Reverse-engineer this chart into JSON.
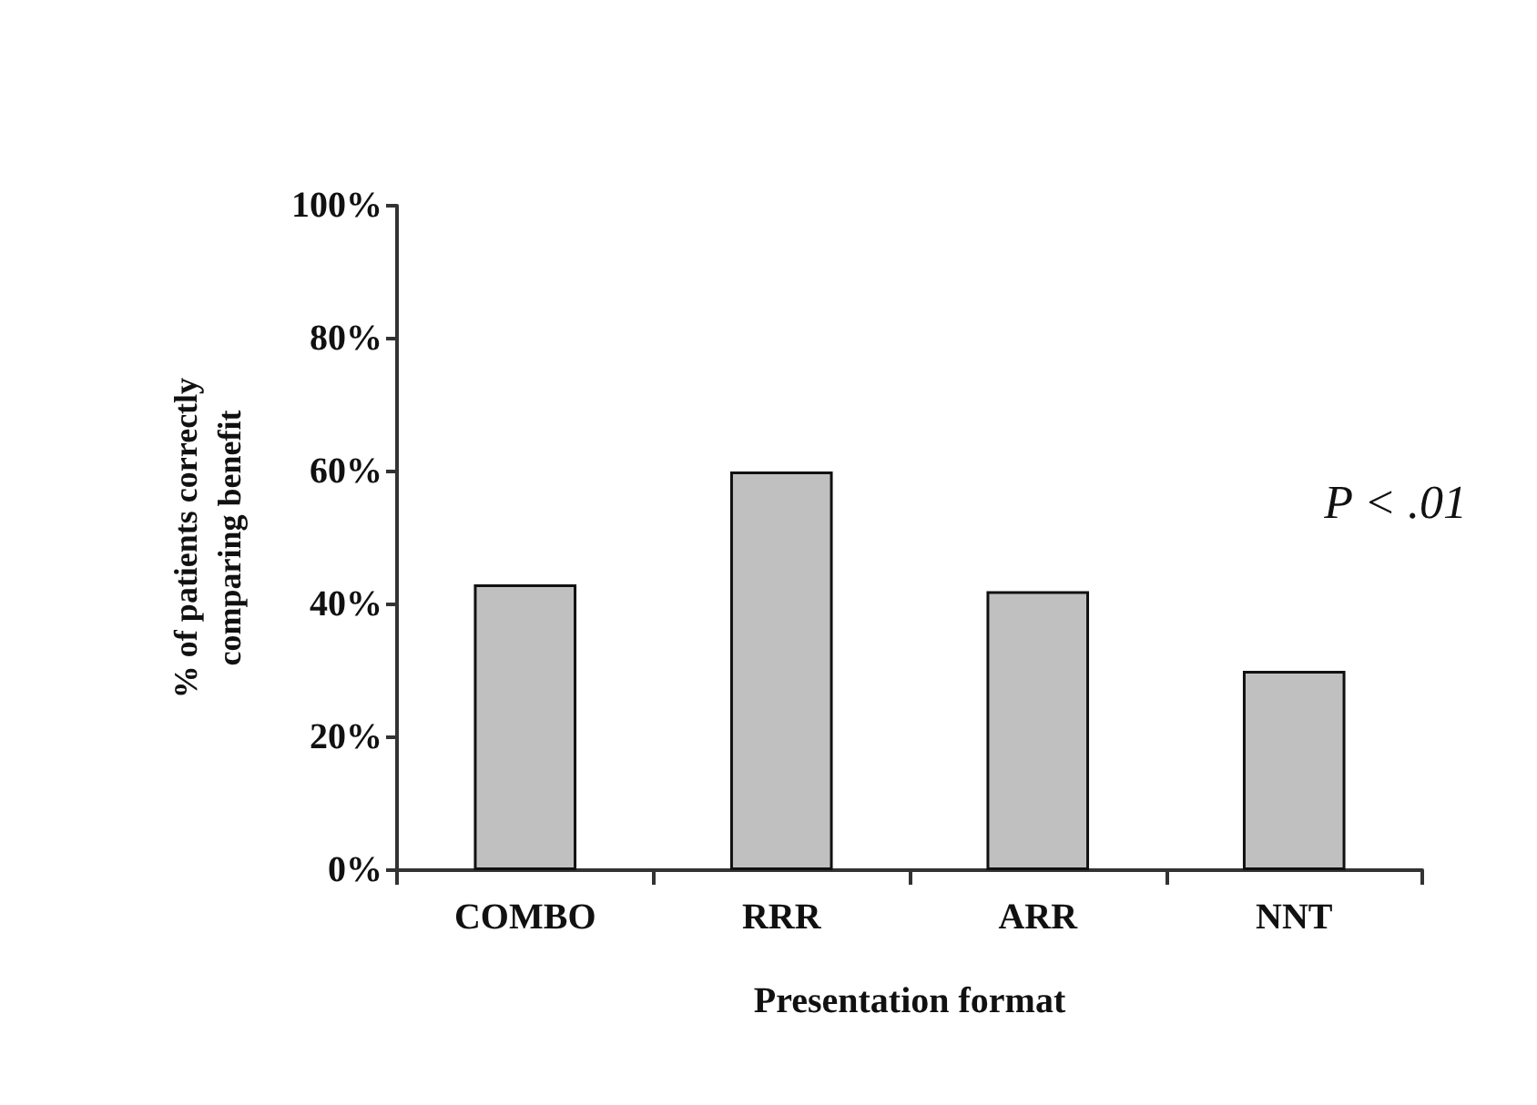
{
  "chart_data": {
    "type": "bar",
    "xlabel": "Presentation format",
    "ylabel": "% of patients correctly\ncomparing benefit",
    "categories": [
      "COMBO",
      "RRR",
      "ARR",
      "NNT"
    ],
    "values": [
      43,
      60,
      42,
      30
    ],
    "color": "#c0c0c0",
    "ylim": [
      0,
      100
    ],
    "yticks": [
      {
        "value": 0,
        "label": "0%"
      },
      {
        "value": 20,
        "label": "20%"
      },
      {
        "value": 40,
        "label": "40%"
      },
      {
        "value": 60,
        "label": "60%"
      },
      {
        "value": 80,
        "label": "80%"
      },
      {
        "value": 100,
        "label": "100%"
      }
    ],
    "grid": false,
    "annotations": [
      "P < .01"
    ]
  }
}
